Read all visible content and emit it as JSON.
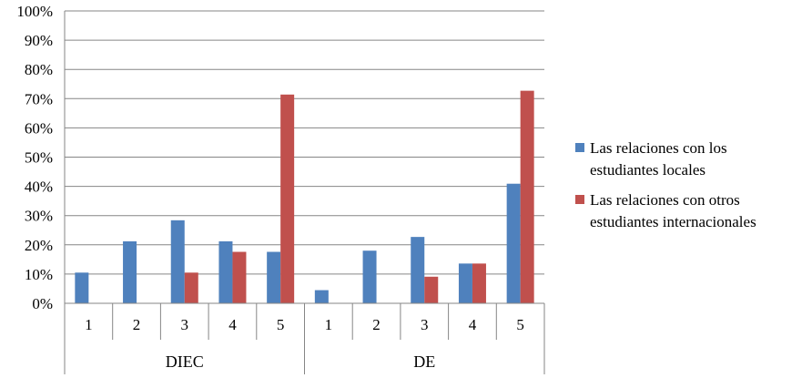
{
  "chart_data": {
    "type": "bar",
    "title": "",
    "xlabel": "",
    "ylabel": "",
    "ylim": [
      0,
      100
    ],
    "y_ticks": [
      "0%",
      "10%",
      "20%",
      "30%",
      "40%",
      "50%",
      "60%",
      "70%",
      "80%",
      "90%",
      "100%"
    ],
    "grid": true,
    "legend_position": "right",
    "groups": [
      {
        "label": "DIEC",
        "categories": [
          "1",
          "2",
          "3",
          "4",
          "5"
        ]
      },
      {
        "label": "DE",
        "categories": [
          "1",
          "2",
          "3",
          "4",
          "5"
        ]
      }
    ],
    "series": [
      {
        "name": "Las relaciones con los estudiantes locales",
        "name_lines": [
          "Las relaciones con los",
          "estudiantes locales"
        ],
        "color": "#4F81BD",
        "values": [
          10.5,
          21.2,
          28.4,
          21.2,
          17.6,
          4.5,
          18.0,
          22.7,
          13.6,
          40.9
        ]
      },
      {
        "name": "Las relaciones con otros estudiantes internacionales",
        "name_lines": [
          "Las relaciones con otros",
          "estudiantes internacionales"
        ],
        "color": "#C0504D",
        "values": [
          0,
          0,
          10.5,
          17.6,
          71.4,
          0,
          0,
          9.1,
          13.6,
          72.7
        ]
      }
    ]
  }
}
